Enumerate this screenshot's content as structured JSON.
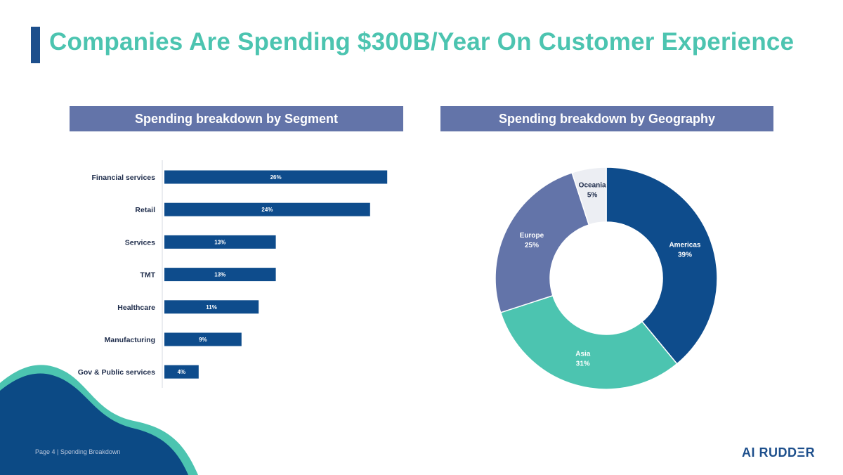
{
  "title": "Companies Are Spending $300B/Year On Customer Experience",
  "footer": {
    "text": "Page 4 | Spending Breakdown",
    "logo": "AI RUDDΞR"
  },
  "colors": {
    "title": "#4cc4b0",
    "accent_bar": "#1d4f8c",
    "header_bg": "#6374a9",
    "bar": "#0e4c8c",
    "wave_dark": "#0c4a85",
    "wave_teal": "#4cc4b0"
  },
  "chart_data": [
    {
      "type": "bar",
      "orientation": "horizontal",
      "title": "Spending breakdown by Segment",
      "categories": [
        "Financial services",
        "Retail",
        "Services",
        "TMT",
        "Healthcare",
        "Manufacturing",
        "Gov & Public services"
      ],
      "values": [
        26,
        24,
        13,
        13,
        11,
        9,
        4
      ],
      "data_labels": [
        "26%",
        "24%",
        "13%",
        "13%",
        "11%",
        "9%",
        "4%"
      ],
      "color": "#0e4c8c"
    },
    {
      "type": "pie",
      "variant": "donut",
      "title": "Spending breakdown by Geography",
      "slices": [
        {
          "label": "Americas",
          "value": 39,
          "display": "39%",
          "color": "#0e4c8c",
          "text_color": "#ffffff"
        },
        {
          "label": "Asia",
          "value": 31,
          "display": "31%",
          "color": "#4cc4b0",
          "text_color": "#ffffff"
        },
        {
          "label": "Europe",
          "value": 25,
          "display": "25%",
          "color": "#6374a9",
          "text_color": "#ffffff"
        },
        {
          "label": "Oceania",
          "value": 5,
          "display": "5%",
          "color": "#eceef3",
          "text_color": "#1d2b4a"
        }
      ]
    }
  ]
}
